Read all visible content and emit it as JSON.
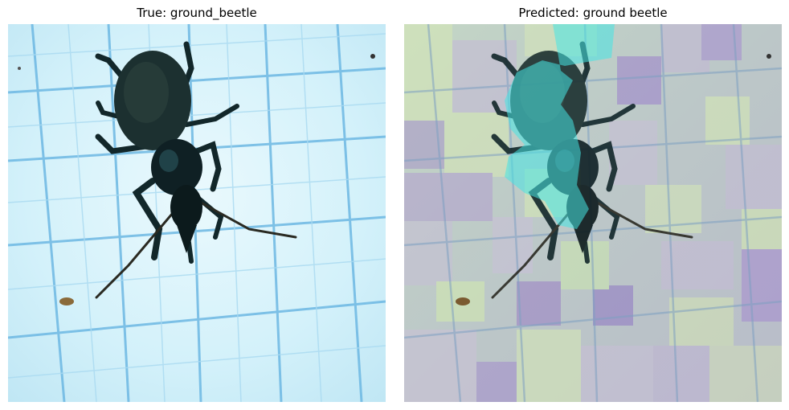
{
  "figure": {
    "left_panel": {
      "title": "True: ground_beetle",
      "image_subject": "ground beetle on blue grid paper"
    },
    "right_panel": {
      "title": "Predicted: ground beetle",
      "image_subject": "ground beetle with superpixel explanation overlay"
    }
  },
  "colors": {
    "paper": "#cdeef8",
    "grid_line": "#5aaedf",
    "beetle": "#12272a",
    "overlay_cyan": "#45e6e3",
    "overlay_green": "#c8e9a5",
    "overlay_purple": "#a48cc4",
    "overlay_neutral": "#b7b7b2"
  }
}
